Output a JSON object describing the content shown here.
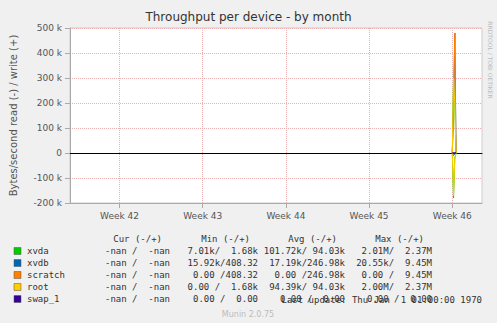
{
  "chart_data": {
    "type": "line",
    "title": "Throughput per device - by month",
    "y_label": "Bytes/second read (-) / write (+)",
    "x": [
      46.0,
      46.015,
      46.03,
      46.045
    ],
    "xlim": [
      41.405,
      46.357
    ],
    "xticks": [
      {
        "value": 42,
        "label": "Week 42"
      },
      {
        "value": 43,
        "label": "Week 43"
      },
      {
        "value": 44,
        "label": "Week 44"
      },
      {
        "value": 45,
        "label": "Week 45"
      },
      {
        "value": 46,
        "label": "Week 46"
      }
    ],
    "ylim": [
      -200000,
      500000
    ],
    "yticks": [
      {
        "value": -200000,
        "label": "-200 k"
      },
      {
        "value": -100000,
        "label": "-100 k"
      },
      0,
      {
        "value": 100000,
        "label": "100 k"
      },
      {
        "value": 200000,
        "label": "200 k"
      },
      {
        "value": 300000,
        "label": "300 k"
      },
      {
        "value": 400000,
        "label": "400 k"
      },
      {
        "value": 500000,
        "label": "500 k"
      }
    ],
    "grid": true,
    "stats_headers": [
      "Cur (-/+)",
      "Min (-/+)",
      "Avg (-/+)",
      "Max (-/+)"
    ],
    "series": [
      {
        "name": "xvda",
        "color": "#00cc00",
        "values": [
          0,
          300000,
          200000,
          0
        ],
        "read": [
          0,
          -180000,
          -20000,
          0
        ],
        "stats": [
          "-nan /  -nan",
          "7.01k/  1.68k",
          "101.72k/ 94.03k",
          "2.01M/  2.37M"
        ]
      },
      {
        "name": "xvdb",
        "color": "#0066b3",
        "values": [
          0,
          180000,
          480000,
          0
        ],
        "read": [
          0,
          -10000,
          -5000,
          0
        ],
        "stats": [
          "-nan /  -nan",
          "15.92k/408.32",
          "17.19k/246.98k",
          "20.55k/  9.45M"
        ]
      },
      {
        "name": "scratch",
        "color": "#ff8000",
        "values": [
          0,
          180000,
          480000,
          0
        ],
        "read": [
          0,
          0,
          0,
          0
        ],
        "stats": [
          "-nan /  -nan",
          "0.00 /408.32",
          "0.00 /246.98k",
          "0.00 /  9.45M"
        ]
      },
      {
        "name": "root",
        "color": "#ffcc00",
        "values": [
          0,
          300000,
          200000,
          0
        ],
        "read": [
          0,
          -170000,
          -20000,
          0
        ],
        "stats": [
          "-nan /  -nan",
          "0.00 /  1.68k",
          "94.39k/ 94.03k",
          "2.00M/  2.37M"
        ]
      },
      {
        "name": "swap_1",
        "color": "#330099",
        "values": [
          0,
          0,
          0,
          0
        ],
        "read": [
          0,
          0,
          0,
          0
        ],
        "stats": [
          "-nan /  -nan",
          "0.00 /  0.00",
          "0.00 /  0.00",
          "0.00 /  0.00"
        ]
      }
    ],
    "last_update": "Last update: Thu Jan  1 01:00:00 1970",
    "footer": "Munin 2.0.75",
    "watermark": "RRDTOOL / TOBI OETIKER"
  }
}
